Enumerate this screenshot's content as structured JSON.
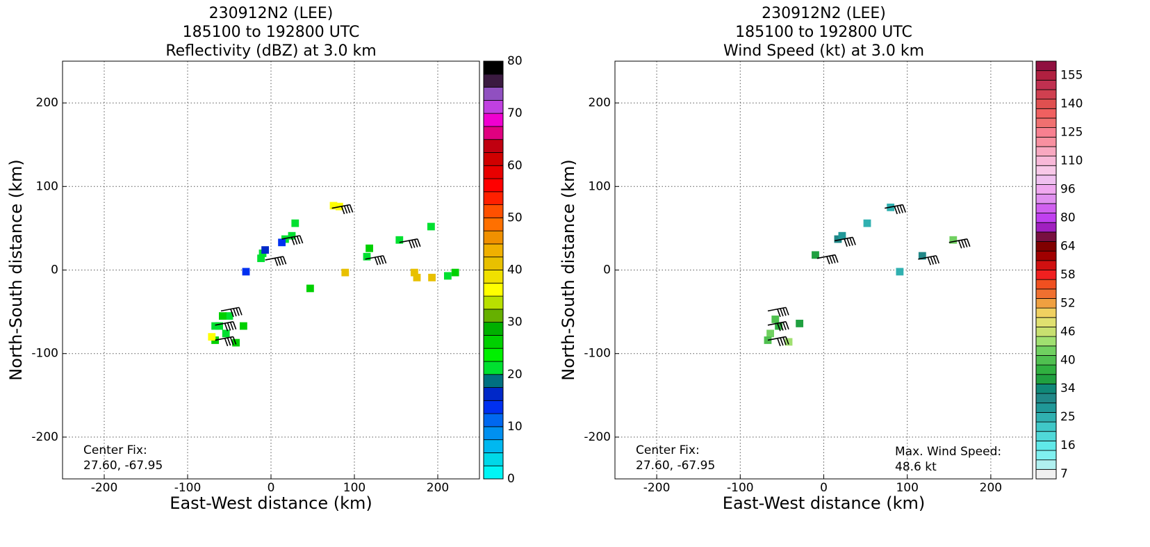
{
  "chart_data": [
    {
      "type": "radar",
      "title": [
        "230912N2 (LEE)",
        "185100 to 192800 UTC",
        "Reflectivity (dBZ) at 3.0 km"
      ],
      "xlabel": "East-West distance (km)",
      "ylabel": "North-South distance (km)",
      "xlim": [
        -250,
        250
      ],
      "ylim": [
        -250,
        250
      ],
      "xticks": [
        -200,
        -100,
        0,
        100,
        200
      ],
      "yticks": [
        -200,
        -100,
        0,
        100,
        200
      ],
      "grid": true,
      "annotations": [
        [
          "Center Fix:",
          "27.60, -67.95"
        ]
      ],
      "colorbar": {
        "clim": [
          0,
          80
        ],
        "ticks": [
          0,
          10,
          20,
          30,
          40,
          50,
          60,
          70,
          80
        ],
        "colors": [
          "#00f5f5",
          "#00d8e8",
          "#00b8f0",
          "#0090f0",
          "#0068f0",
          "#0030f0",
          "#0028c8",
          "#007080",
          "#00e030",
          "#00f000",
          "#00d000",
          "#00b000",
          "#66b000",
          "#b8e000",
          "#ffff00",
          "#f0e000",
          "#e8c000",
          "#f0b000",
          "#f09000",
          "#ff7000",
          "#ff5000",
          "#ff2000",
          "#ff0000",
          "#e80000",
          "#d00000",
          "#c00010",
          "#e00080",
          "#f000d0",
          "#c040e0",
          "#9050c0",
          "#3a1a40",
          "#000000"
        ]
      },
      "cells": {
        "x": [
          75,
          82,
          25,
          17,
          29,
          -10,
          -12,
          -7,
          -30,
          13,
          115,
          118,
          154,
          192,
          172,
          193,
          89,
          47,
          221,
          212,
          175,
          -62,
          -50,
          -67,
          -71,
          -33,
          -42,
          -54,
          -58,
          -67
        ],
        "y": [
          77,
          76,
          41,
          37,
          56,
          20,
          14,
          24,
          -2,
          33,
          16,
          26,
          36,
          52,
          -3,
          -9,
          -3,
          -22,
          -3,
          -7,
          -9,
          -67,
          -55,
          -84,
          -80,
          -67,
          -87,
          -76,
          -55,
          -67
        ],
        "values": [
          37,
          35,
          22,
          22,
          22,
          22,
          22,
          17,
          13,
          13,
          22,
          27,
          22,
          22,
          42,
          40,
          40,
          27,
          27,
          22,
          42,
          22,
          22,
          25,
          37,
          25,
          27,
          22,
          25,
          22
        ]
      },
      "barbs": {
        "x": [
          73,
          13,
          -7,
          113,
          154,
          -67,
          -67,
          -60
        ],
        "y": [
          74,
          37,
          12,
          13,
          33,
          -66,
          -84,
          -49
        ]
      }
    },
    {
      "type": "radar",
      "title": [
        "230912N2 (LEE)",
        "185100 to 192800 UTC",
        "Wind Speed (kt) at 3.0 km"
      ],
      "xlabel": "East-West distance (km)",
      "ylabel": "North-South distance (km)",
      "xlim": [
        -250,
        250
      ],
      "ylim": [
        -250,
        250
      ],
      "xticks": [
        -200,
        -100,
        0,
        100,
        200
      ],
      "yticks": [
        -200,
        -100,
        0,
        100,
        200
      ],
      "grid": true,
      "annotations": [
        [
          "Center Fix:",
          "27.60, -67.95"
        ],
        [
          "Max. Wind Speed:",
          "48.6 kt"
        ]
      ],
      "colorbar": {
        "labels": [
          7,
          null,
          null,
          16,
          null,
          null,
          25,
          null,
          null,
          34,
          null,
          null,
          40,
          null,
          null,
          46,
          null,
          null,
          52,
          null,
          null,
          58,
          null,
          null,
          64,
          null,
          null,
          80,
          null,
          null,
          96,
          null,
          null,
          110,
          null,
          null,
          125,
          null,
          null,
          140,
          null,
          null,
          155,
          null
        ],
        "colors": [
          "#f0f0f0",
          "#b0f0f0",
          "#80f0f0",
          "#60e8e8",
          "#50d8d8",
          "#40c8c8",
          "#30b0b0",
          "#209898",
          "#208888",
          "#108878",
          "#20a040",
          "#30b040",
          "#50c050",
          "#70d060",
          "#a0e070",
          "#c8e070",
          "#e0e070",
          "#f0d060",
          "#f0a040",
          "#f07030",
          "#f05020",
          "#f02020",
          "#d01010",
          "#a00000",
          "#800000",
          "#781040",
          "#a020c0",
          "#c040f0",
          "#d060f0",
          "#e090f0",
          "#f0a8f0",
          "#f0c0f0",
          "#f8c8e8",
          "#f8b8d8",
          "#f8a8c0",
          "#f890a0",
          "#f88090",
          "#f07070",
          "#f06060",
          "#e05050",
          "#d04050",
          "#c03050",
          "#b02040",
          "#901040"
        ]
      },
      "cells": {
        "x": [
          80,
          17,
          22,
          -10,
          52,
          91,
          118,
          155,
          -58,
          -64,
          -67,
          -54,
          -42,
          -29
        ],
        "y": [
          75,
          37,
          41,
          18,
          56,
          -2,
          17,
          36,
          -59,
          -76,
          -84,
          -67,
          -86,
          -64
        ],
        "values": [
          25,
          30,
          28,
          36,
          25,
          25,
          30,
          42,
          40,
          42,
          40,
          38,
          44,
          36
        ]
      },
      "barbs": {
        "x": [
          73,
          13,
          -8,
          113,
          150,
          -67,
          -67,
          -67
        ],
        "y": [
          74,
          35,
          14,
          13,
          33,
          -66,
          -84,
          -49
        ]
      }
    }
  ]
}
